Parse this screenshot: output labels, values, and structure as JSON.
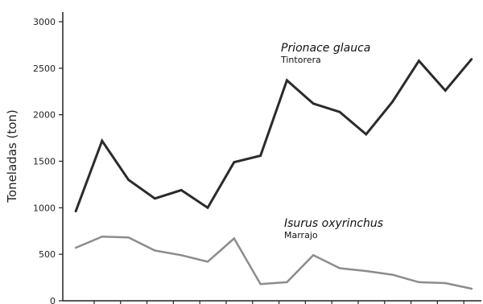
{
  "chart_data": {
    "type": "line",
    "ylabel": "Toneladas (ton)",
    "ylim": [
      0,
      3000
    ],
    "yticks": [
      0,
      500,
      1000,
      1500,
      2000,
      2500,
      3000
    ],
    "x": [
      1,
      2,
      3,
      4,
      5,
      6,
      7,
      8,
      9,
      10,
      11,
      12,
      13,
      14,
      15,
      16
    ],
    "grid": false,
    "series": [
      {
        "name": "Prionace glauca",
        "common_name": "Tintorera",
        "color": "#2b2b2b",
        "values": [
          960,
          1720,
          1300,
          1100,
          1190,
          1000,
          1490,
          1560,
          2370,
          2120,
          2030,
          1790,
          2140,
          2580,
          2260,
          2600
        ]
      },
      {
        "name": "Isurus oxyrinchus",
        "common_name": "Marrajo",
        "color": "#8c8c8c",
        "values": [
          570,
          690,
          680,
          540,
          490,
          420,
          670,
          180,
          200,
          490,
          350,
          320,
          280,
          200,
          190,
          130
        ]
      }
    ]
  }
}
